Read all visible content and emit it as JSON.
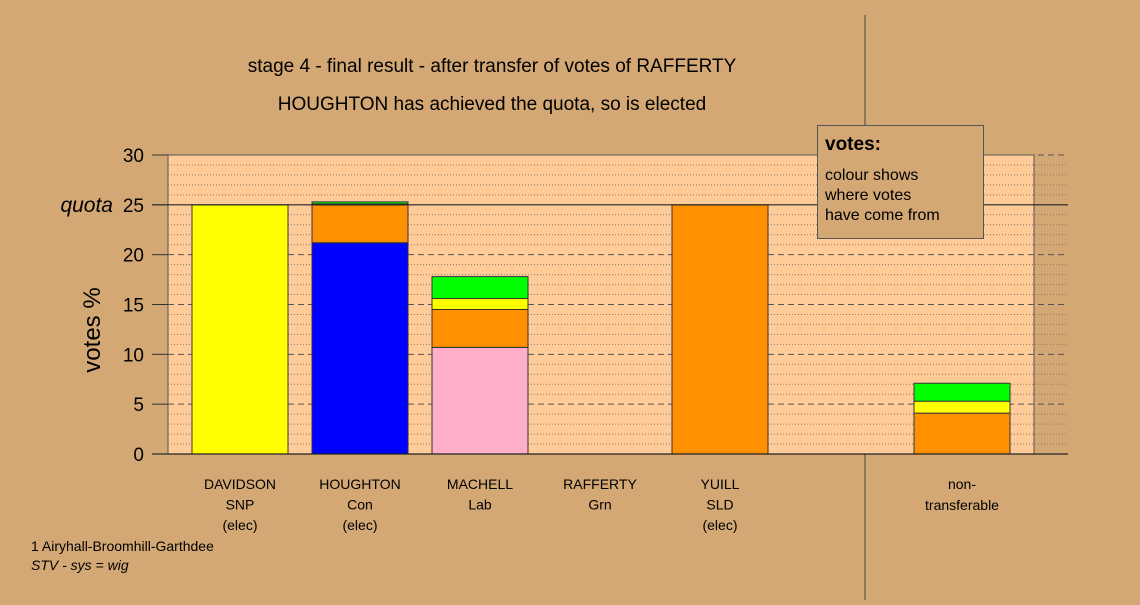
{
  "chart_data": {
    "type": "bar",
    "stacked": true,
    "title": "stage 4 - final result - after transfer of votes of RAFFERTY",
    "subtitle": "HOUGHTON has achieved the quota, so is elected",
    "ylabel": "votes %",
    "ylim": [
      0,
      30
    ],
    "yticks": [
      "0",
      "5",
      "10",
      "15",
      "20",
      "30"
    ],
    "quota": {
      "value": 25,
      "label": "quota",
      "tick": "25"
    },
    "grid": true,
    "categories": [
      {
        "lines": [
          "DAVIDSON",
          "SNP",
          "(elec)"
        ]
      },
      {
        "lines": [
          "HOUGHTON",
          "Con",
          "(elec)"
        ]
      },
      {
        "lines": [
          "MACHELL",
          "Lab"
        ]
      },
      {
        "lines": [
          "RAFFERTY",
          "Grn"
        ]
      },
      {
        "lines": [
          "YUILL",
          "SLD",
          "(elec)"
        ]
      },
      {
        "lines": [
          "non-",
          "transferable"
        ]
      }
    ],
    "bars": [
      [
        {
          "color": "#ffff00",
          "value": 25
        }
      ],
      [
        {
          "color": "#0000ff",
          "value": 21.2
        },
        {
          "color": "#ff9100",
          "value": 3.8
        },
        {
          "color": "#ffff00",
          "value": 0.1
        },
        {
          "color": "#00ff00",
          "value": 0.2
        }
      ],
      [
        {
          "color": "#ffafc8",
          "value": 10.7
        },
        {
          "color": "#ff9100",
          "value": 3.8
        },
        {
          "color": "#ffff00",
          "value": 1.1
        },
        {
          "color": "#00ff00",
          "value": 2.2
        }
      ],
      [],
      [
        {
          "color": "#ff9100",
          "value": 25
        }
      ],
      [
        {
          "color": "#ff9100",
          "value": 4.1
        },
        {
          "color": "#ffff00",
          "value": 1.2
        },
        {
          "color": "#00ff00",
          "value": 1.8
        }
      ]
    ]
  },
  "legend": {
    "title": "votes:",
    "lines": [
      "colour shows",
      "where votes",
      "have come from"
    ]
  },
  "footer": {
    "ward": "1 Airyhall-Broomhill-Garthdee",
    "system": "STV - sys = wig"
  }
}
